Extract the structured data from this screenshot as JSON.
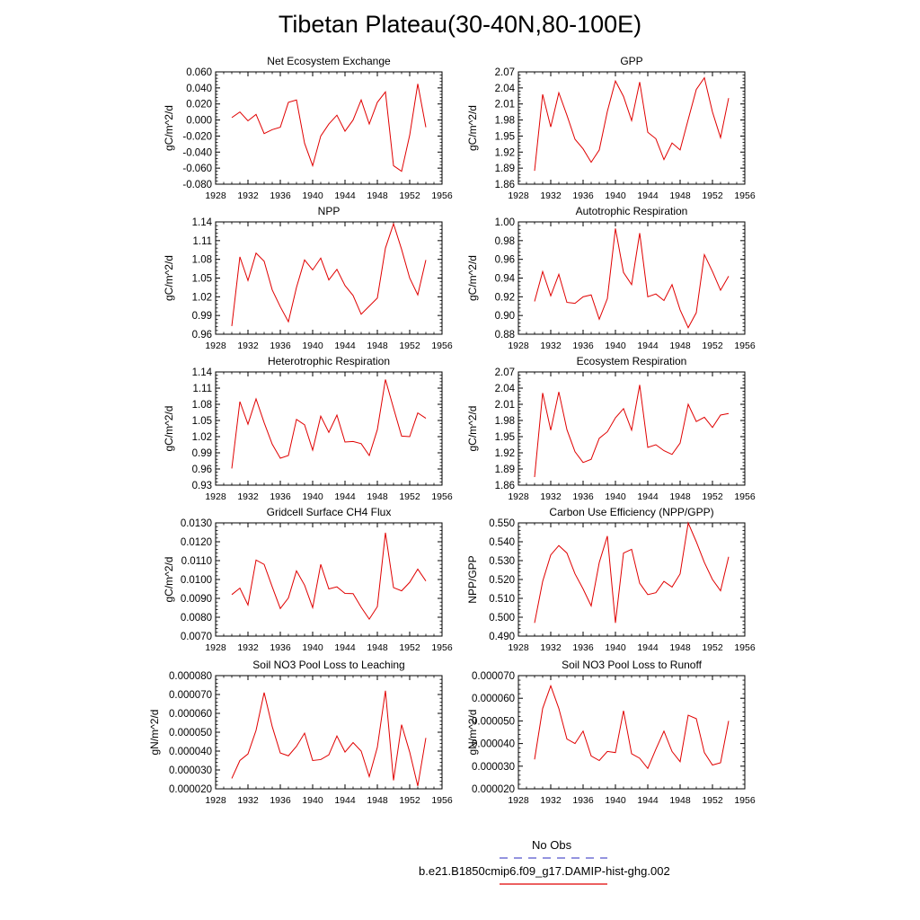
{
  "title": "Tibetan Plateau(30-40N,80-100E)",
  "legend": {
    "items": [
      {
        "label": "No Obs",
        "color": "#5555cc",
        "style": "dashed"
      },
      {
        "label": "b.e21.B1850cmip6.f09_g17.DAMIP-hist-ghg.002",
        "color": "#e00000",
        "style": "solid"
      }
    ]
  },
  "chart_data": [
    {
      "type": "line",
      "title": "Net Ecosystem Exchange",
      "xlabel": "",
      "ylabel": "gC/m^2/d",
      "xlim": [
        1928,
        1956
      ],
      "ylim": [
        -0.08,
        0.06
      ],
      "xticks": [
        "1928",
        "1932",
        "1936",
        "1940",
        "1944",
        "1948",
        "1952",
        "1956"
      ],
      "yticks": [
        "0.060",
        "0.040",
        "0.020",
        "0.000",
        "-0.020",
        "-0.040",
        "-0.060",
        "-0.080"
      ],
      "series": [
        {
          "color": "#e00000",
          "x": [
            1930,
            1931,
            1932,
            1933,
            1934,
            1935,
            1936,
            1937,
            1938,
            1939,
            1940,
            1941,
            1942,
            1943,
            1944,
            1945,
            1946,
            1947,
            1948,
            1949,
            1950,
            1951,
            1952,
            1953,
            1954
          ],
          "values": [
            0.003,
            0.01,
            -0.001,
            0.007,
            -0.017,
            -0.012,
            -0.009,
            0.022,
            0.025,
            -0.029,
            -0.057,
            -0.02,
            -0.005,
            0.006,
            -0.014,
            0.0,
            0.025,
            -0.005,
            0.022,
            0.035,
            -0.057,
            -0.064,
            -0.019,
            0.045,
            -0.009
          ]
        }
      ]
    },
    {
      "type": "line",
      "title": "GPP",
      "xlabel": "",
      "ylabel": "gC/m^2/d",
      "xlim": [
        1928,
        1956
      ],
      "ylim": [
        1.86,
        2.07
      ],
      "xticks": [
        "1928",
        "1932",
        "1936",
        "1940",
        "1944",
        "1948",
        "1952",
        "1956"
      ],
      "yticks": [
        "2.07",
        "2.04",
        "2.01",
        "1.98",
        "1.95",
        "1.92",
        "1.89",
        "1.86"
      ],
      "series": [
        {
          "color": "#e00000",
          "x": [
            1930,
            1931,
            1932,
            1933,
            1934,
            1935,
            1936,
            1937,
            1938,
            1939,
            1940,
            1941,
            1942,
            1943,
            1944,
            1945,
            1946,
            1947,
            1948,
            1949,
            1950,
            1951,
            1952,
            1953,
            1954
          ],
          "values": [
            1.885,
            2.028,
            1.967,
            2.031,
            1.989,
            1.944,
            1.926,
            1.901,
            1.924,
            1.996,
            2.053,
            2.024,
            1.979,
            2.051,
            1.957,
            1.945,
            1.906,
            1.937,
            1.924,
            1.981,
            2.037,
            2.059,
            1.995,
            1.947,
            2.021
          ]
        }
      ]
    },
    {
      "type": "line",
      "title": "NPP",
      "xlabel": "",
      "ylabel": "gC/m^2/d",
      "xlim": [
        1928,
        1956
      ],
      "ylim": [
        0.96,
        1.14
      ],
      "xticks": [
        "1928",
        "1932",
        "1936",
        "1940",
        "1944",
        "1948",
        "1952",
        "1956"
      ],
      "yticks": [
        "1.14",
        "1.11",
        "1.08",
        "1.05",
        "1.02",
        "0.99",
        "0.96"
      ],
      "series": [
        {
          "color": "#e00000",
          "x": [
            1930,
            1931,
            1932,
            1933,
            1934,
            1935,
            1936,
            1937,
            1938,
            1939,
            1940,
            1941,
            1942,
            1943,
            1944,
            1945,
            1946,
            1947,
            1948,
            1949,
            1950,
            1951,
            1952,
            1953,
            1954
          ],
          "values": [
            0.973,
            1.084,
            1.046,
            1.09,
            1.077,
            1.031,
            1.004,
            0.98,
            1.035,
            1.079,
            1.063,
            1.082,
            1.047,
            1.064,
            1.038,
            1.022,
            0.992,
            1.005,
            1.018,
            1.098,
            1.137,
            1.096,
            1.05,
            1.023,
            1.079
          ]
        }
      ]
    },
    {
      "type": "line",
      "title": "Autotrophic Respiration",
      "xlabel": "",
      "ylabel": "gC/m^2/d",
      "xlim": [
        1928,
        1956
      ],
      "ylim": [
        0.88,
        1.0
      ],
      "xticks": [
        "1928",
        "1932",
        "1936",
        "1940",
        "1944",
        "1948",
        "1952",
        "1956"
      ],
      "yticks": [
        "1.00",
        "0.98",
        "0.96",
        "0.94",
        "0.92",
        "0.90",
        "0.88"
      ],
      "series": [
        {
          "color": "#e00000",
          "x": [
            1930,
            1931,
            1932,
            1933,
            1934,
            1935,
            1936,
            1937,
            1938,
            1939,
            1940,
            1941,
            1942,
            1943,
            1944,
            1945,
            1946,
            1947,
            1948,
            1949,
            1950,
            1951,
            1952,
            1953,
            1954
          ],
          "values": [
            0.915,
            0.947,
            0.921,
            0.944,
            0.914,
            0.913,
            0.92,
            0.922,
            0.896,
            0.918,
            0.993,
            0.946,
            0.933,
            0.988,
            0.92,
            0.923,
            0.916,
            0.933,
            0.906,
            0.887,
            0.903,
            0.965,
            0.947,
            0.927,
            0.942
          ]
        }
      ]
    },
    {
      "type": "line",
      "title": "Heterotrophic Respiration",
      "xlabel": "",
      "ylabel": "gC/m^2/d",
      "xlim": [
        1928,
        1956
      ],
      "ylim": [
        0.93,
        1.14
      ],
      "xticks": [
        "1928",
        "1932",
        "1936",
        "1940",
        "1944",
        "1948",
        "1952",
        "1956"
      ],
      "yticks": [
        "1.14",
        "1.11",
        "1.08",
        "1.05",
        "1.02",
        "0.99",
        "0.96",
        "0.93"
      ],
      "series": [
        {
          "color": "#e00000",
          "x": [
            1930,
            1931,
            1932,
            1933,
            1934,
            1935,
            1936,
            1937,
            1938,
            1939,
            1940,
            1941,
            1942,
            1943,
            1944,
            1945,
            1946,
            1947,
            1948,
            1949,
            1950,
            1951,
            1952,
            1953,
            1954
          ],
          "values": [
            0.961,
            1.085,
            1.043,
            1.09,
            1.046,
            1.006,
            0.98,
            0.985,
            1.052,
            1.042,
            0.995,
            1.058,
            1.028,
            1.06,
            1.01,
            1.011,
            1.007,
            0.985,
            1.033,
            1.126,
            1.073,
            1.021,
            1.02,
            1.064,
            1.054
          ]
        }
      ]
    },
    {
      "type": "line",
      "title": "Ecosystem Respiration",
      "xlabel": "",
      "ylabel": "gC/m^2/d",
      "xlim": [
        1928,
        1956
      ],
      "ylim": [
        1.86,
        2.07
      ],
      "xticks": [
        "1928",
        "1932",
        "1936",
        "1940",
        "1944",
        "1948",
        "1952",
        "1956"
      ],
      "yticks": [
        "2.07",
        "2.04",
        "2.01",
        "1.98",
        "1.95",
        "1.92",
        "1.89",
        "1.86"
      ],
      "series": [
        {
          "color": "#e00000",
          "x": [
            1930,
            1931,
            1932,
            1933,
            1934,
            1935,
            1936,
            1937,
            1938,
            1939,
            1940,
            1941,
            1942,
            1943,
            1944,
            1945,
            1946,
            1947,
            1948,
            1949,
            1950,
            1951,
            1952,
            1953,
            1954
          ],
          "values": [
            1.875,
            2.031,
            1.962,
            2.033,
            1.963,
            1.922,
            1.902,
            1.908,
            1.947,
            1.959,
            1.985,
            2.002,
            1.962,
            2.046,
            1.93,
            1.935,
            1.924,
            1.917,
            1.938,
            2.01,
            1.978,
            1.986,
            1.967,
            1.99,
            1.993
          ]
        }
      ]
    },
    {
      "type": "line",
      "title": "Gridcell Surface CH4 Flux",
      "xlabel": "",
      "ylabel": "gC/m^2/d",
      "xlim": [
        1928,
        1956
      ],
      "ylim": [
        0.007,
        0.013
      ],
      "xticks": [
        "1928",
        "1932",
        "1936",
        "1940",
        "1944",
        "1948",
        "1952",
        "1956"
      ],
      "yticks": [
        "0.0130",
        "0.0120",
        "0.0110",
        "0.0100",
        "0.0090",
        "0.0080",
        "0.0070"
      ],
      "series": [
        {
          "color": "#e00000",
          "x": [
            1930,
            1931,
            1932,
            1933,
            1934,
            1935,
            1936,
            1937,
            1938,
            1939,
            1940,
            1941,
            1942,
            1943,
            1944,
            1945,
            1946,
            1947,
            1948,
            1949,
            1950,
            1951,
            1952,
            1953,
            1954
          ],
          "values": [
            0.0092,
            0.00954,
            0.00865,
            0.01103,
            0.0108,
            0.00961,
            0.00846,
            0.00902,
            0.01046,
            0.0097,
            0.00851,
            0.0108,
            0.0095,
            0.00961,
            0.00926,
            0.00925,
            0.00853,
            0.0079,
            0.00856,
            0.01248,
            0.00957,
            0.0094,
            0.00985,
            0.01055,
            0.00992
          ]
        }
      ]
    },
    {
      "type": "line",
      "title": "Carbon Use Efficiency (NPP/GPP)",
      "xlabel": "",
      "ylabel": "NPP/GPP",
      "xlim": [
        1928,
        1956
      ],
      "ylim": [
        0.49,
        0.55
      ],
      "xticks": [
        "1928",
        "1932",
        "1936",
        "1940",
        "1944",
        "1948",
        "1952",
        "1956"
      ],
      "yticks": [
        "0.550",
        "0.540",
        "0.530",
        "0.520",
        "0.510",
        "0.500",
        "0.490"
      ],
      "series": [
        {
          "color": "#e00000",
          "x": [
            1930,
            1931,
            1932,
            1933,
            1934,
            1935,
            1936,
            1937,
            1938,
            1939,
            1940,
            1941,
            1942,
            1943,
            1944,
            1945,
            1946,
            1947,
            1948,
            1949,
            1950,
            1951,
            1952,
            1953,
            1954
          ],
          "values": [
            0.497,
            0.519,
            0.533,
            0.538,
            0.534,
            0.523,
            0.515,
            0.506,
            0.529,
            0.543,
            0.497,
            0.534,
            0.536,
            0.518,
            0.512,
            0.513,
            0.519,
            0.516,
            0.523,
            0.55,
            0.54,
            0.529,
            0.52,
            0.514,
            0.532
          ]
        }
      ]
    },
    {
      "type": "line",
      "title": "Soil NO3 Pool Loss to Leaching",
      "xlabel": "",
      "ylabel": "gN/m^2/d",
      "xlim": [
        1928,
        1956
      ],
      "ylim": [
        2e-05,
        8e-05
      ],
      "xticks": [
        "1928",
        "1932",
        "1936",
        "1940",
        "1944",
        "1948",
        "1952",
        "1956"
      ],
      "yticks": [
        "0.000080",
        "0.000070",
        "0.000060",
        "0.000050",
        "0.000040",
        "0.000030",
        "0.000020"
      ],
      "series": [
        {
          "color": "#e00000",
          "x": [
            1930,
            1931,
            1932,
            1933,
            1934,
            1935,
            1936,
            1937,
            1938,
            1939,
            1940,
            1941,
            1942,
            1943,
            1944,
            1945,
            1946,
            1947,
            1948,
            1949,
            1950,
            1951,
            1952,
            1953,
            1954
          ],
          "values": [
            2.55e-05,
            3.5e-05,
            3.85e-05,
            5.1e-05,
            7.1e-05,
            5.3e-05,
            3.9e-05,
            3.75e-05,
            4.25e-05,
            4.95e-05,
            3.5e-05,
            3.55e-05,
            3.8e-05,
            4.8e-05,
            3.95e-05,
            4.45e-05,
            4e-05,
            2.65e-05,
            4.2e-05,
            7.2e-05,
            2.45e-05,
            5.4e-05,
            3.95e-05,
            2.15e-05,
            4.7e-05
          ]
        }
      ]
    },
    {
      "type": "line",
      "title": "Soil NO3 Pool Loss to Runoff",
      "xlabel": "",
      "ylabel": "gN/m^2/d",
      "xlim": [
        1928,
        1956
      ],
      "ylim": [
        2e-05,
        7e-05
      ],
      "xticks": [
        "1928",
        "1932",
        "1936",
        "1940",
        "1944",
        "1948",
        "1952",
        "1956"
      ],
      "yticks": [
        "0.000070",
        "0.000060",
        "0.000050",
        "0.000040",
        "0.000030",
        "0.000020"
      ],
      "series": [
        {
          "color": "#e00000",
          "x": [
            1930,
            1931,
            1932,
            1933,
            1934,
            1935,
            1936,
            1937,
            1938,
            1939,
            1940,
            1941,
            1942,
            1943,
            1944,
            1945,
            1946,
            1947,
            1948,
            1949,
            1950,
            1951,
            1952,
            1953,
            1954
          ],
          "values": [
            3.3e-05,
            5.55e-05,
            6.55e-05,
            5.55e-05,
            4.2e-05,
            4e-05,
            4.55e-05,
            3.45e-05,
            3.25e-05,
            3.65e-05,
            3.6e-05,
            5.45e-05,
            3.55e-05,
            3.35e-05,
            2.9e-05,
            3.75e-05,
            4.55e-05,
            3.65e-05,
            3.2e-05,
            5.25e-05,
            5.1e-05,
            3.6e-05,
            3.05e-05,
            3.15e-05,
            5e-05
          ]
        }
      ]
    }
  ]
}
